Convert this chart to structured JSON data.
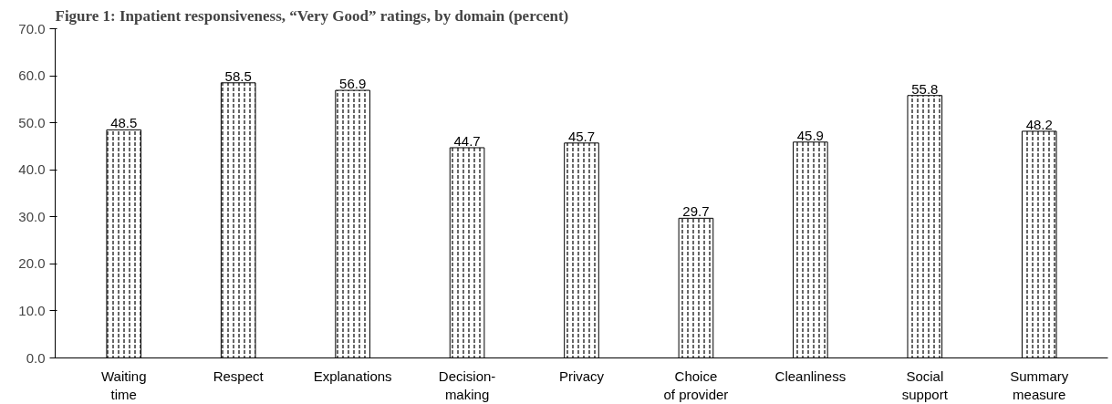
{
  "chart_data": {
    "type": "bar",
    "title": "Figure 1: Inpatient responsiveness, “Very Good” ratings, by domain (percent)",
    "categories": [
      "Waiting\ntime",
      "Respect",
      "Explanations",
      "Decision-\nmaking",
      "Privacy",
      "Choice\nof provider",
      "Cleanliness",
      "Social\nsupport",
      "Summary\nmeasure"
    ],
    "values": [
      48.5,
      58.5,
      56.9,
      44.7,
      45.7,
      29.7,
      45.9,
      55.8,
      48.2
    ],
    "color": "#ffffff",
    "ylim": [
      0,
      70
    ],
    "yticks": [
      {
        "value": 0,
        "label": "0.0"
      },
      {
        "value": 10,
        "label": "10.0"
      },
      {
        "value": 20,
        "label": "20.0"
      },
      {
        "value": 30,
        "label": "30.0"
      },
      {
        "value": 40,
        "label": "40.0"
      },
      {
        "value": 50,
        "label": "50.0"
      },
      {
        "value": 60,
        "label": "60.0"
      },
      {
        "value": 70,
        "label": "70.0"
      }
    ],
    "data_labels": true,
    "grid": false
  }
}
